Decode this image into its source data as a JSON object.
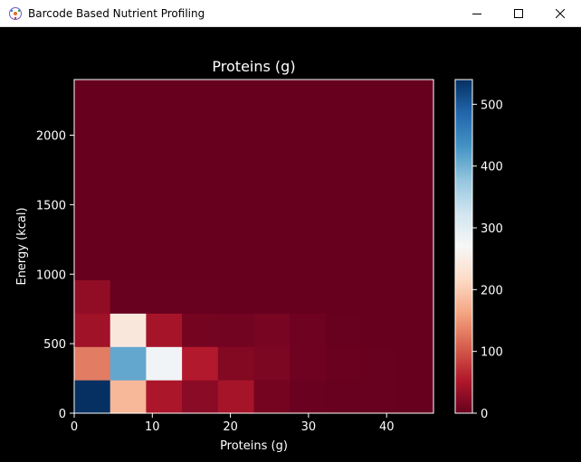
{
  "window": {
    "title": "Barcode Based Nutrient Profiling",
    "controls": [
      "minimize",
      "maximize",
      "close"
    ]
  },
  "chart_data": {
    "type": "heatmap",
    "title": "Proteins (g)",
    "xlabel": "Proteins (g)",
    "ylabel": "Energy (kcal)",
    "xlim": [
      0,
      46
    ],
    "ylim": [
      0,
      2400
    ],
    "x_ticks": [
      0,
      10,
      20,
      30,
      40
    ],
    "y_ticks": [
      0,
      500,
      1000,
      1500,
      2000
    ],
    "colorbar": {
      "min": 0,
      "max": 540,
      "ticks": [
        0,
        100,
        200,
        300,
        400,
        500
      ],
      "colormap": "RdBu"
    },
    "x_bin_edges": [
      0,
      4.6,
      9.2,
      13.8,
      18.4,
      23.0,
      27.6,
      32.2,
      36.8,
      41.4,
      46.0
    ],
    "y_bin_edges": [
      0,
      240,
      480,
      720,
      960,
      1200,
      1440,
      1680,
      1920,
      2160,
      2400
    ],
    "counts": [
      [
        540,
        180,
        50,
        25,
        45,
        10,
        3,
        1,
        1,
        0
      ],
      [
        130,
        410,
        280,
        55,
        20,
        15,
        5,
        2,
        1,
        0
      ],
      [
        40,
        240,
        45,
        10,
        8,
        12,
        5,
        1,
        0,
        0
      ],
      [
        30,
        1,
        1,
        1,
        0,
        0,
        0,
        0,
        0,
        0
      ],
      [
        0,
        0,
        0,
        0,
        0,
        0,
        0,
        0,
        0,
        0
      ],
      [
        0,
        0,
        0,
        0,
        0,
        0,
        0,
        0,
        0,
        0
      ],
      [
        0,
        0,
        0,
        0,
        0,
        0,
        0,
        0,
        0,
        0
      ],
      [
        0,
        0,
        0,
        0,
        0,
        0,
        0,
        0,
        0,
        0
      ],
      [
        0,
        0,
        0,
        0,
        0,
        0,
        0,
        0,
        0,
        0
      ],
      [
        0,
        0,
        0,
        0,
        0,
        0,
        0,
        0,
        0,
        0
      ]
    ],
    "grid": false
  },
  "colors": {
    "background": "#000000",
    "foreground": "#ffffff",
    "titlebar": "#ffffff"
  }
}
